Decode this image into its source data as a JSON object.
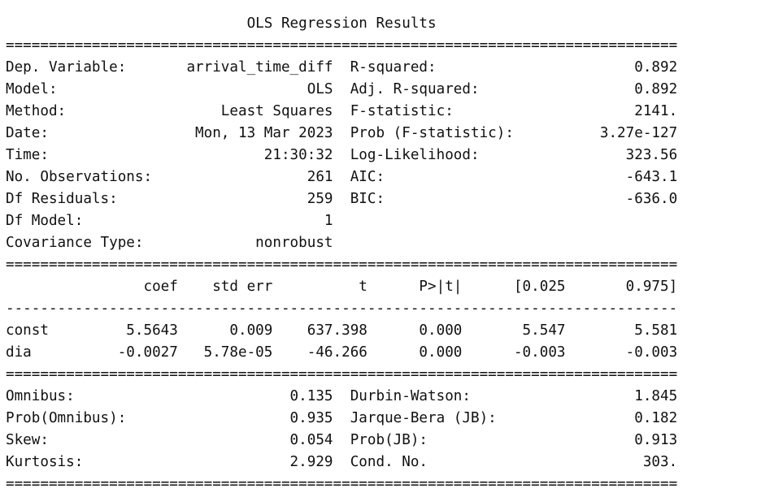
{
  "title": "OLS Regression Results",
  "separators": {
    "double": "==============================================================================",
    "single": "------------------------------------------------------------------------------"
  },
  "top_table": [
    {
      "left_label": "Dep. Variable:",
      "left_value": "arrival_time_diff",
      "right_label": "R-squared:",
      "right_value": "0.892"
    },
    {
      "left_label": "Model:",
      "left_value": "OLS",
      "right_label": "Adj. R-squared:",
      "right_value": "0.892"
    },
    {
      "left_label": "Method:",
      "left_value": "Least Squares",
      "right_label": "F-statistic:",
      "right_value": "2141."
    },
    {
      "left_label": "Date:",
      "left_value": "Mon, 13 Mar 2023",
      "right_label": "Prob (F-statistic):",
      "right_value": "3.27e-127"
    },
    {
      "left_label": "Time:",
      "left_value": "21:30:32",
      "right_label": "Log-Likelihood:",
      "right_value": "323.56"
    },
    {
      "left_label": "No. Observations:",
      "left_value": "261",
      "right_label": "AIC:",
      "right_value": "-643.1"
    },
    {
      "left_label": "Df Residuals:",
      "left_value": "259",
      "right_label": "BIC:",
      "right_value": "-636.0"
    },
    {
      "left_label": "Df Model:",
      "left_value": "1",
      "right_label": "",
      "right_value": ""
    },
    {
      "left_label": "Covariance Type:",
      "left_value": "nonrobust",
      "right_label": "",
      "right_value": ""
    }
  ],
  "coef_table": {
    "headers": [
      "",
      "coef",
      "std err",
      "t",
      "P>|t|",
      "[0.025",
      "0.975]"
    ],
    "rows": [
      [
        "const",
        "5.5643",
        "0.009",
        "637.398",
        "0.000",
        "5.547",
        "5.581"
      ],
      [
        "dia",
        "-0.0027",
        "5.78e-05",
        "-46.266",
        "0.000",
        "-0.003",
        "-0.003"
      ]
    ]
  },
  "bottom_table": [
    {
      "left_label": "Omnibus:",
      "left_value": "0.135",
      "right_label": "Durbin-Watson:",
      "right_value": "1.845"
    },
    {
      "left_label": "Prob(Omnibus):",
      "left_value": "0.935",
      "right_label": "Jarque-Bera (JB):",
      "right_value": "0.182"
    },
    {
      "left_label": "Skew:",
      "left_value": "0.054",
      "right_label": "Prob(JB):",
      "right_value": "0.913"
    },
    {
      "left_label": "Kurtosis:",
      "left_value": "2.929",
      "right_label": "Cond. No.",
      "right_value": "303."
    }
  ]
}
